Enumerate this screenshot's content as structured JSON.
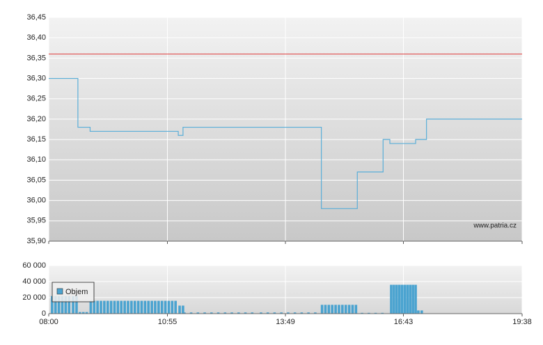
{
  "chart_data": [
    {
      "type": "line",
      "annotation": "www.patria.cz",
      "x": [
        480,
        523,
        523,
        541,
        541,
        671,
        671,
        678,
        678,
        882,
        882,
        935,
        935,
        973,
        973,
        983,
        983,
        1021,
        1021,
        1037,
        1037,
        1178
      ],
      "values": [
        36.3,
        36.3,
        36.18,
        36.18,
        36.17,
        36.17,
        36.16,
        36.16,
        36.18,
        36.18,
        35.98,
        35.98,
        36.07,
        36.07,
        36.15,
        36.15,
        36.14,
        36.14,
        36.15,
        36.15,
        36.2,
        36.2
      ],
      "color": "#5aaed8",
      "reference_line": 36.36,
      "reference_color": "#e03c3c",
      "ylim": [
        35.9,
        36.45
      ],
      "yticks": [
        {
          "value": 35.9,
          "label": "35,90"
        },
        {
          "value": 35.95,
          "label": "35,95"
        },
        {
          "value": 36.0,
          "label": "36,00"
        },
        {
          "value": 36.05,
          "label": "36,05"
        },
        {
          "value": 36.1,
          "label": "36,10"
        },
        {
          "value": 36.15,
          "label": "36,15"
        },
        {
          "value": 36.2,
          "label": "36,20"
        },
        {
          "value": 36.25,
          "label": "36,25"
        },
        {
          "value": 36.3,
          "label": "36,30"
        },
        {
          "value": 36.35,
          "label": "36,35"
        },
        {
          "value": 36.4,
          "label": "36,40"
        },
        {
          "value": 36.45,
          "label": "36,45"
        }
      ],
      "grid": true
    },
    {
      "type": "bar",
      "xlim": [
        480,
        1178
      ],
      "xticks": [
        {
          "value": 480,
          "label": "08:00"
        },
        {
          "value": 655,
          "label": "10:55"
        },
        {
          "value": 829,
          "label": "13:49"
        },
        {
          "value": 1003,
          "label": "16:43"
        },
        {
          "value": 1178,
          "label": "19:38"
        }
      ],
      "ylim": [
        0,
        60000
      ],
      "yticks": [
        0,
        {
          "value": 20000,
          "label": "20 000"
        },
        {
          "value": 40000,
          "label": "40 000"
        },
        {
          "value": 60000,
          "label": "60 000"
        }
      ],
      "grid": true,
      "series": [
        {
          "name": "Objem",
          "color": "#4aa3d0",
          "x": [
            485,
            490,
            495,
            500,
            505,
            510,
            516,
            521,
            526,
            531,
            536,
            542,
            547,
            552,
            557,
            562,
            567,
            572,
            577,
            582,
            587,
            592,
            597,
            602,
            607,
            612,
            617,
            622,
            627,
            632,
            637,
            642,
            647,
            652,
            657,
            662,
            667,
            673,
            678,
            680,
            690,
            700,
            710,
            720,
            730,
            740,
            750,
            760,
            770,
            780,
            793,
            803,
            813,
            823,
            833,
            843,
            853,
            863,
            873,
            883,
            888,
            893,
            898,
            903,
            908,
            913,
            918,
            923,
            928,
            933,
            942,
            952,
            962,
            972,
            985,
            989,
            993,
            997,
            1001,
            1005,
            1009,
            1013,
            1017,
            1021,
            1025,
            1030
          ],
          "values": [
            22000,
            22000,
            22000,
            22000,
            22000,
            22000,
            22000,
            22000,
            2000,
            2000,
            2000,
            16000,
            16000,
            16000,
            16000,
            16000,
            16000,
            16000,
            16000,
            16000,
            16000,
            16000,
            16000,
            16000,
            16000,
            16000,
            16000,
            16000,
            16000,
            16000,
            16000,
            16000,
            16000,
            16000,
            16000,
            16000,
            16000,
            10000,
            10000,
            1500,
            1500,
            1500,
            1500,
            1500,
            1500,
            1500,
            1500,
            1500,
            1500,
            1500,
            1500,
            1500,
            1500,
            1500,
            1500,
            1500,
            1500,
            1500,
            1500,
            11000,
            11000,
            11000,
            11000,
            11000,
            11000,
            11000,
            11000,
            11000,
            11000,
            11000,
            1000,
            1000,
            1000,
            1000,
            36000,
            36000,
            36000,
            36000,
            36000,
            36000,
            36000,
            36000,
            36000,
            36000,
            4000,
            4000
          ]
        }
      ]
    }
  ]
}
